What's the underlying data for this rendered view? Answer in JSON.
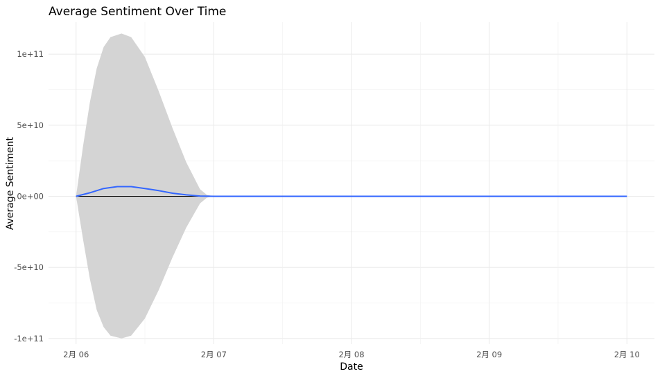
{
  "chart_data": {
    "type": "line",
    "title": "Average Sentiment Over Time",
    "xlabel": "Date",
    "ylabel": "Average Sentiment",
    "x_ticks": [
      "2月 06",
      "2月 07",
      "2月 08",
      "2月 09",
      "2月 10"
    ],
    "y_ticks": [
      "-1e+11",
      "-5e+10",
      "0e+00",
      "5e+10",
      "1e+11"
    ],
    "xlim": [
      -0.2,
      4.2
    ],
    "ylim": [
      -104000000000.0,
      122500000000.0
    ],
    "grid": true,
    "series": [
      {
        "values": [
          {
            "x": 0.0,
            "y": 0
          },
          {
            "x": 0.1,
            "y": 2500000000.0
          },
          {
            "x": 0.2,
            "y": 5500000000.0
          },
          {
            "x": 0.3,
            "y": 6800000000.0
          },
          {
            "x": 0.4,
            "y": 6800000000.0
          },
          {
            "x": 0.5,
            "y": 5500000000.0
          },
          {
            "x": 0.6,
            "y": 4000000000.0
          },
          {
            "x": 0.7,
            "y": 2200000000.0
          },
          {
            "x": 0.8,
            "y": 1000000000.0
          },
          {
            "x": 0.9,
            "y": 200000000.0
          },
          {
            "x": 1.0,
            "y": 0
          },
          {
            "x": 2.0,
            "y": 0
          },
          {
            "x": 3.0,
            "y": 0
          },
          {
            "x": 4.0,
            "y": 0
          }
        ],
        "color": "#3366ff"
      }
    ],
    "confidence_band": [
      {
        "x": 0.0,
        "lo": 0,
        "hi": 0
      },
      {
        "x": 0.05,
        "lo": -30000000000.0,
        "hi": 35000000000.0
      },
      {
        "x": 0.1,
        "lo": -58000000000.0,
        "hi": 66000000000.0
      },
      {
        "x": 0.15,
        "lo": -80000000000.0,
        "hi": 90000000000.0
      },
      {
        "x": 0.2,
        "lo": -92000000000.0,
        "hi": 105000000000.0
      },
      {
        "x": 0.25,
        "lo": -98000000000.0,
        "hi": 112000000000.0
      },
      {
        "x": 0.33,
        "lo": -100000000000.0,
        "hi": 114500000000.0
      },
      {
        "x": 0.4,
        "lo": -98000000000.0,
        "hi": 112000000000.0
      },
      {
        "x": 0.5,
        "lo": -86000000000.0,
        "hi": 98000000000.0
      },
      {
        "x": 0.6,
        "lo": -66000000000.0,
        "hi": 74000000000.0
      },
      {
        "x": 0.7,
        "lo": -43000000000.0,
        "hi": 48000000000.0
      },
      {
        "x": 0.8,
        "lo": -22000000000.0,
        "hi": 24000000000.0
      },
      {
        "x": 0.9,
        "lo": -5000000000.0,
        "hi": 5000000000.0
      },
      {
        "x": 0.95,
        "lo": -1000000000.0,
        "hi": 1000000000.0
      },
      {
        "x": 1.0,
        "lo": 0,
        "hi": 0
      }
    ],
    "band_color": "#d4d4d4",
    "reference_line": {
      "y": 0,
      "x_end": 1.0,
      "color": "#000000"
    }
  }
}
